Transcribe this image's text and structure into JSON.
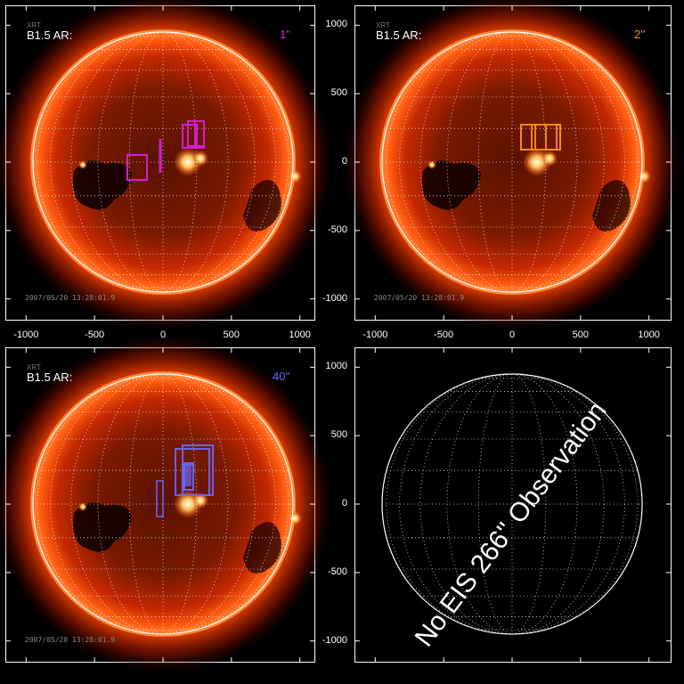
{
  "panels": [
    {
      "id": "tl",
      "ar_label": "B1.5 AR:",
      "fov_label": "1''",
      "fov_color": "#d020d0",
      "satellite": "XRT",
      "timestamp": "2007/05/20 13:28:01.9",
      "has_image": true
    },
    {
      "id": "tr",
      "ar_label": "B1.5 AR:",
      "fov_label": "2''",
      "fov_color": "#ff8c1a",
      "satellite": "XRT",
      "timestamp": "2007/05/20 13:28:01.9",
      "has_image": true
    },
    {
      "id": "bl",
      "ar_label": "B1.5 AR:",
      "fov_label": "40''",
      "fov_color": "#6a6aff",
      "satellite": "XRT",
      "timestamp": "2007/05/20 13:28:01.9",
      "has_image": true
    },
    {
      "id": "br",
      "has_image": false,
      "message": "No EIS 266'' Observation"
    }
  ],
  "axis": {
    "x_ticks": [
      "-1000",
      "-500",
      "0",
      "500",
      "1000"
    ],
    "y_ticks": [
      "1000",
      "500",
      "0",
      "-500",
      "-1000"
    ]
  },
  "colors": {
    "disk_glow": "#ff3a00",
    "disk_core": "#3a0800",
    "grid": "#ffffff"
  }
}
